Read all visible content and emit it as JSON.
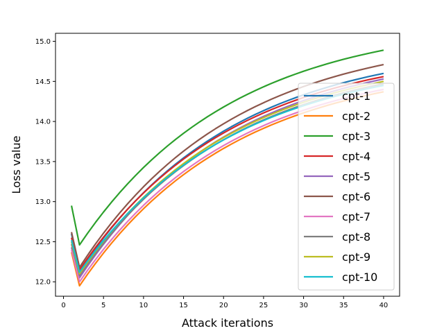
{
  "chart_data": {
    "type": "line",
    "xlabel": "Attack iterations",
    "ylabel": "Loss value",
    "xlim": [
      -1,
      42
    ],
    "ylim": [
      11.82,
      15.1
    ],
    "xticks": [
      0,
      5,
      10,
      15,
      20,
      25,
      30,
      35,
      40
    ],
    "yticks": [
      12.0,
      12.5,
      13.0,
      13.5,
      14.0,
      14.5,
      15.0
    ],
    "xtick_labels": [
      "0",
      "5",
      "10",
      "15",
      "20",
      "25",
      "30",
      "35",
      "40"
    ],
    "ytick_labels": [
      "12.0",
      "12.5",
      "13.0",
      "13.5",
      "14.0",
      "14.5",
      "15.0"
    ],
    "grid": false,
    "legend_position": "right",
    "x_range": [
      1,
      40
    ],
    "series": [
      {
        "name": "cpt-1",
        "color": "#1f77b4",
        "start": 12.6,
        "dip": 12.13,
        "end": 14.6
      },
      {
        "name": "cpt-2",
        "color": "#ff7f0e",
        "start": 12.37,
        "dip": 11.95,
        "end": 14.37
      },
      {
        "name": "cpt-3",
        "color": "#2ca02c",
        "start": 12.95,
        "dip": 12.46,
        "end": 14.89
      },
      {
        "name": "cpt-4",
        "color": "#d62728",
        "start": 12.55,
        "dip": 12.15,
        "end": 14.56
      },
      {
        "name": "cpt-5",
        "color": "#9467bd",
        "start": 12.43,
        "dip": 12.05,
        "end": 14.53
      },
      {
        "name": "cpt-6",
        "color": "#8c564b",
        "start": 12.62,
        "dip": 12.18,
        "end": 14.71
      },
      {
        "name": "cpt-7",
        "color": "#e377c2",
        "start": 12.4,
        "dip": 12.0,
        "end": 14.4
      },
      {
        "name": "cpt-8",
        "color": "#7f7f7f",
        "start": 12.47,
        "dip": 12.08,
        "end": 14.47
      },
      {
        "name": "cpt-9",
        "color": "#bcbd22",
        "start": 12.5,
        "dip": 12.1,
        "end": 14.5
      },
      {
        "name": "cpt-10",
        "color": "#17becf",
        "start": 12.52,
        "dip": 12.12,
        "end": 14.45
      }
    ]
  }
}
